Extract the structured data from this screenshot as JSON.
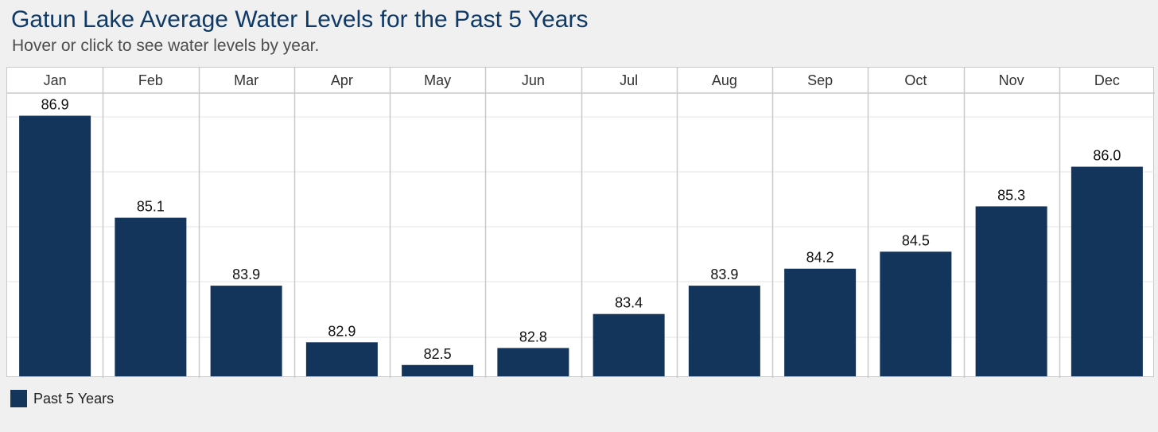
{
  "header": {
    "title": "Gatun Lake Average Water Levels for the Past 5 Years",
    "subtitle": "Hover or click to see water levels by year."
  },
  "colors": {
    "bar": "#13345b",
    "title": "#0f3a66",
    "grid": "#e6e6e6",
    "divider": "#c9c9c9"
  },
  "chart_data": {
    "type": "bar",
    "title": "Gatun Lake Average Water Levels for the Past 5 Years",
    "subtitle": "Hover or click to see water levels by year.",
    "categories": [
      "Jan",
      "Feb",
      "Mar",
      "Apr",
      "May",
      "Jun",
      "Jul",
      "Aug",
      "Sep",
      "Oct",
      "Nov",
      "Dec"
    ],
    "series": [
      {
        "name": "Past 5 Years",
        "values": [
          86.9,
          85.1,
          83.9,
          82.9,
          82.5,
          82.8,
          83.4,
          83.9,
          84.2,
          84.5,
          85.3,
          86.0
        ]
      }
    ],
    "value_labels": [
      "86.9",
      "85.1",
      "83.9",
      "82.9",
      "82.5",
      "82.8",
      "83.4",
      "83.9",
      "84.2",
      "84.5",
      "85.3",
      "86.0"
    ],
    "ylim": [
      82.3,
      87.3
    ],
    "xlabel": "",
    "ylabel": "",
    "grid": true,
    "category_labels_position": "top",
    "legend_position": "bottom-left"
  },
  "legend": {
    "items": [
      {
        "label": "Past 5 Years"
      }
    ]
  }
}
